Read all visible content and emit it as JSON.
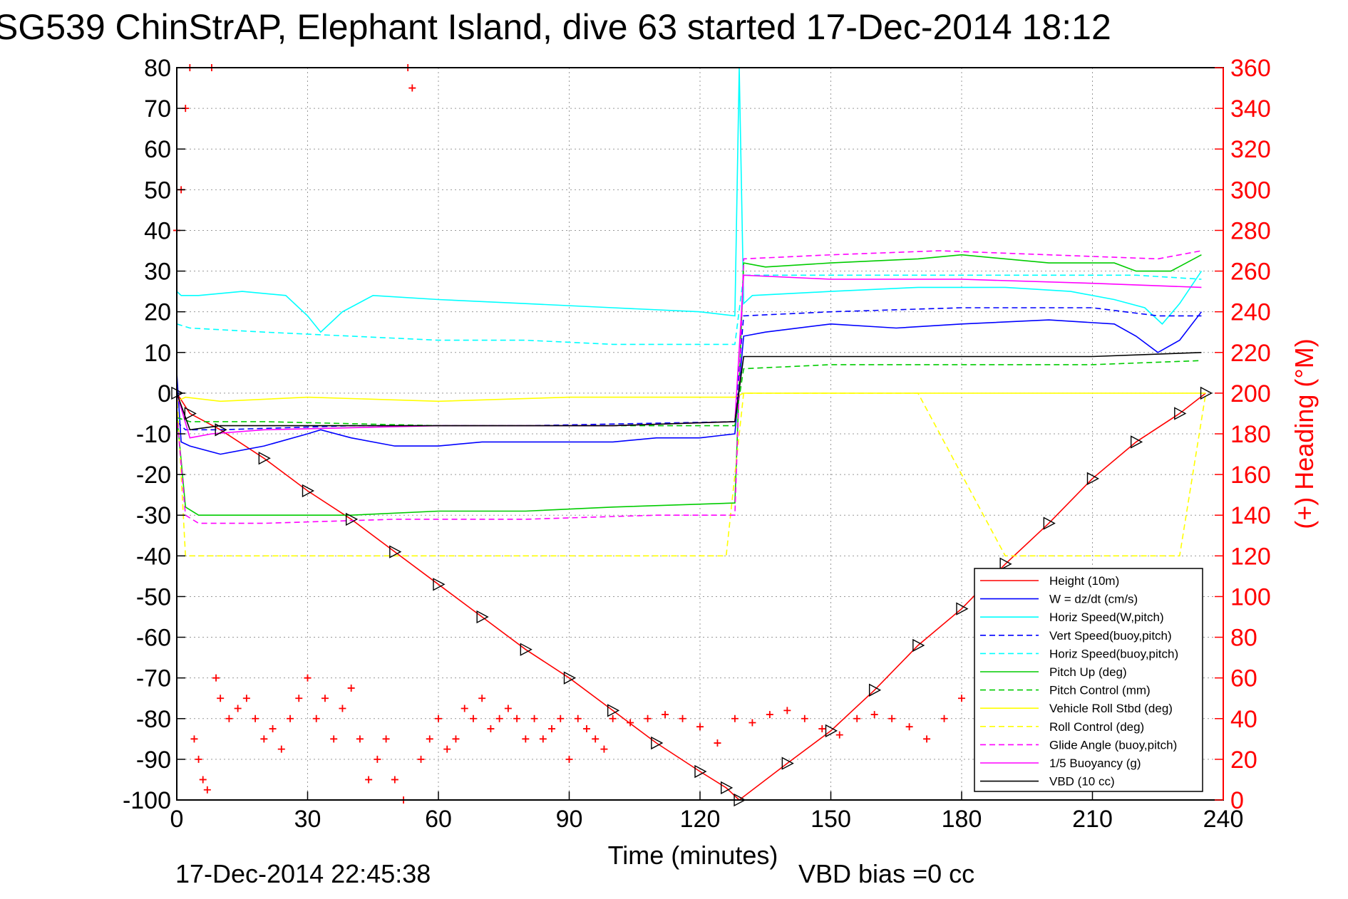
{
  "chart_data": {
    "type": "line",
    "title": "SG539 ChinStrAP, Elephant Island, dive 63 started 17-Dec-2014 18:12",
    "xlabel": "Time (minutes)",
    "ylabel": "",
    "y2label": "(+) Heading (°M)",
    "xlim": [
      0,
      240
    ],
    "ylim": [
      -100,
      80
    ],
    "y2lim": [
      0,
      360
    ],
    "xticks": [
      "0",
      "30",
      "60",
      "90",
      "120",
      "150",
      "180",
      "210",
      "240"
    ],
    "yticks": [
      "80",
      "70",
      "60",
      "50",
      "40",
      "30",
      "20",
      "10",
      "0",
      "-10",
      "-20",
      "-30",
      "-40",
      "-50",
      "-60",
      "-70",
      "-80",
      "-90",
      "-100"
    ],
    "y2ticks": [
      "360",
      "340",
      "320",
      "300",
      "280",
      "260",
      "240",
      "220",
      "200",
      "180",
      "160",
      "140",
      "120",
      "100",
      "80",
      "60",
      "40",
      "20",
      "0"
    ],
    "grid": true,
    "legend_position": "lower-right",
    "footer_left": "17-Dec-2014 22:45:38",
    "footer_right": "VBD bias =0 cc",
    "series": [
      {
        "name": "Height (10m)",
        "color": "#ff0000",
        "style": "solid",
        "marker": "triangle",
        "x": [
          0,
          3,
          10,
          20,
          30,
          40,
          50,
          60,
          70,
          80,
          90,
          100,
          110,
          120,
          126,
          129,
          140,
          150,
          160,
          170,
          180,
          190,
          200,
          210,
          220,
          230,
          236
        ],
        "y": [
          0,
          -5,
          -9,
          -16,
          -24,
          -31,
          -39,
          -47,
          -55,
          -63,
          -70,
          -78,
          -86,
          -93,
          -97,
          -100,
          -91,
          -83,
          -73,
          -62,
          -53,
          -42,
          -32,
          -21,
          -12,
          -5,
          0
        ]
      },
      {
        "name": "W = dz/dt (cm/s)",
        "color": "#0000ff",
        "style": "solid",
        "x": [
          0,
          1,
          3,
          10,
          20,
          30,
          33,
          40,
          50,
          60,
          70,
          80,
          90,
          100,
          110,
          120,
          128,
          130,
          135,
          150,
          165,
          180,
          200,
          215,
          220,
          225,
          230,
          235
        ],
        "y": [
          5,
          -12,
          -13,
          -15,
          -13,
          -10,
          -9,
          -11,
          -13,
          -13,
          -12,
          -12,
          -12,
          -12,
          -11,
          -11,
          -10,
          14,
          15,
          17,
          16,
          17,
          18,
          17,
          14,
          10,
          13,
          20
        ]
      },
      {
        "name": "Horiz Speed(W,pitch)",
        "color": "#00ffff",
        "style": "solid",
        "x": [
          0,
          1,
          5,
          15,
          25,
          30,
          33,
          38,
          45,
          60,
          80,
          100,
          120,
          128,
          129,
          130,
          132,
          150,
          170,
          190,
          205,
          215,
          222,
          226,
          230,
          235
        ],
        "y": [
          25,
          24,
          24,
          25,
          24,
          19,
          15,
          20,
          24,
          23,
          22,
          21,
          20,
          19,
          80,
          22,
          24,
          25,
          26,
          26,
          25,
          23,
          21,
          17,
          22,
          30
        ]
      },
      {
        "name": "Vert Speed(buoy,pitch)",
        "color": "#0000ff",
        "style": "dashed",
        "x": [
          0,
          2,
          10,
          40,
          80,
          128,
          130,
          150,
          180,
          210,
          225,
          235
        ],
        "y": [
          -7,
          -9,
          -9,
          -8,
          -8,
          -7,
          19,
          20,
          21,
          21,
          19,
          19
        ]
      },
      {
        "name": "Horiz Speed(buoy,pitch)",
        "color": "#00ffff",
        "style": "dashed",
        "x": [
          0,
          3,
          20,
          40,
          60,
          80,
          100,
          128,
          130,
          160,
          190,
          220,
          235
        ],
        "y": [
          17,
          16,
          15,
          14,
          13,
          13,
          12,
          12,
          29,
          29,
          29,
          29,
          28
        ]
      },
      {
        "name": "Pitch Up (deg)",
        "color": "#00cc00",
        "style": "solid",
        "x": [
          0,
          2,
          5,
          20,
          40,
          60,
          80,
          100,
          128,
          130,
          135,
          150,
          170,
          180,
          200,
          215,
          220,
          228,
          235
        ],
        "y": [
          -5,
          -28,
          -30,
          -30,
          -30,
          -29,
          -29,
          -28,
          -27,
          32,
          31,
          32,
          33,
          34,
          32,
          32,
          30,
          30,
          34
        ]
      },
      {
        "name": "Pitch Control (mm)",
        "color": "#00cc00",
        "style": "dashed",
        "x": [
          0,
          3,
          20,
          60,
          128,
          130,
          150,
          180,
          210,
          235
        ],
        "y": [
          -6,
          -7,
          -7,
          -8,
          -8,
          6,
          7,
          7,
          7,
          8
        ]
      },
      {
        "name": "Vehicle Roll Stbd (deg)",
        "color": "#ffff00",
        "style": "solid",
        "x": [
          0,
          2,
          10,
          30,
          60,
          90,
          110,
          128,
          130,
          150,
          180,
          210,
          230,
          236
        ],
        "y": [
          -2,
          -1,
          -2,
          -1,
          -2,
          -1,
          -1,
          -1,
          0,
          0,
          0,
          0,
          0,
          0
        ]
      },
      {
        "name": "Roll Control (deg)",
        "color": "#ffff00",
        "style": "dashed",
        "x": [
          0,
          2,
          12,
          18,
          28,
          36,
          44,
          54,
          62,
          72,
          84,
          96,
          110,
          126,
          130,
          150,
          170,
          190,
          210,
          222,
          230,
          236
        ],
        "y": [
          0,
          -40,
          -40,
          -40,
          -40,
          -40,
          -40,
          -40,
          -40,
          -40,
          -40,
          -40,
          -40,
          -40,
          0,
          0,
          0,
          -40,
          -40,
          -40,
          -40,
          0
        ]
      },
      {
        "name": "Glide Angle (buoy,pitch)",
        "color": "#ff00ff",
        "style": "dashed",
        "x": [
          0,
          2,
          5,
          20,
          50,
          80,
          110,
          128,
          130,
          150,
          175,
          200,
          225,
          235
        ],
        "y": [
          -5,
          -30,
          -32,
          -32,
          -31,
          -31,
          -30,
          -30,
          33,
          34,
          35,
          34,
          33,
          35
        ]
      },
      {
        "name": "1/5 Buoyancy (g)",
        "color": "#ff00ff",
        "style": "solid",
        "x": [
          0,
          3,
          8,
          20,
          60,
          100,
          128,
          130,
          150,
          180,
          210,
          235
        ],
        "y": [
          0,
          -11,
          -10,
          -9,
          -8,
          -8,
          -7,
          29,
          28,
          28,
          27,
          26
        ]
      },
      {
        "name": "VBD (10 cc)",
        "color": "#000000",
        "style": "solid",
        "x": [
          0,
          3,
          10,
          50,
          100,
          128,
          130,
          150,
          180,
          210,
          235
        ],
        "y": [
          0,
          -9,
          -8,
          -8,
          -8,
          -7,
          9,
          9,
          9,
          9,
          10
        ]
      },
      {
        "name": "(+) Heading",
        "color": "#ff0000",
        "style": "none",
        "marker": "plus",
        "axis": "right",
        "x": [
          0,
          1,
          2,
          3,
          4,
          5,
          6,
          7,
          8,
          9,
          10,
          12,
          14,
          16,
          18,
          20,
          22,
          24,
          26,
          28,
          30,
          32,
          34,
          36,
          38,
          40,
          42,
          44,
          46,
          48,
          50,
          52,
          53,
          54,
          56,
          58,
          60,
          62,
          64,
          66,
          68,
          70,
          72,
          74,
          76,
          78,
          80,
          82,
          84,
          86,
          88,
          90,
          92,
          94,
          96,
          98,
          100,
          104,
          108,
          112,
          116,
          120,
          124,
          128,
          132,
          136,
          140,
          144,
          148,
          152,
          156,
          160,
          164,
          168,
          172,
          176,
          180,
          184,
          188
        ],
        "y": [
          280,
          300,
          340,
          360,
          30,
          20,
          10,
          5,
          360,
          60,
          50,
          40,
          45,
          50,
          40,
          30,
          35,
          25,
          40,
          50,
          60,
          40,
          50,
          30,
          45,
          55,
          30,
          10,
          20,
          30,
          10,
          0,
          360,
          350,
          20,
          30,
          40,
          25,
          30,
          45,
          40,
          50,
          35,
          40,
          45,
          40,
          30,
          40,
          30,
          35,
          40,
          20,
          40,
          35,
          30,
          25,
          40,
          38,
          40,
          42,
          40,
          36,
          28,
          40,
          38,
          42,
          44,
          40,
          35,
          32,
          40,
          42,
          40,
          36,
          30,
          40,
          50,
          42,
          48
        ]
      }
    ]
  }
}
